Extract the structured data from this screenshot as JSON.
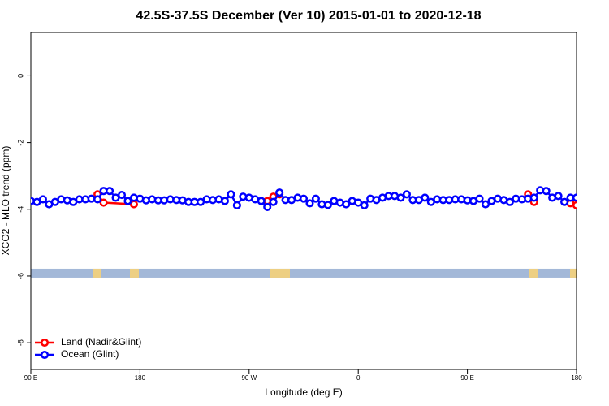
{
  "chart_data": {
    "type": "line",
    "title": "42.5S-37.5S December (Ver 10)   2015-01-01 to 2020-12-18",
    "xlabel": "Longitude (deg E)",
    "ylabel": "XCO2 - MLO trend (ppm)",
    "xlim": [
      90,
      540
    ],
    "ylim": [
      -8.8,
      1.3
    ],
    "xticks": [
      {
        "value": 90,
        "label": "90 E"
      },
      180,
      {
        "value": 270,
        "label": "90 W"
      },
      {
        "value": 360,
        "label": "0"
      },
      {
        "value": 450,
        "label": "90 E"
      },
      {
        "value": 540,
        "label": "180"
      }
    ],
    "yticks": [
      0,
      -2,
      -4,
      -6,
      -8
    ],
    "legend": "bottomleft",
    "series": [
      {
        "name": "Land (Nadir&Glint)",
        "color": "#ff0000",
        "x": [
          145,
          150,
          175,
          230,
          285,
          290,
          295,
          400,
          500,
          505,
          520,
          535,
          540
        ],
        "values": [
          -3.55,
          -3.8,
          -3.85,
          null,
          -3.75,
          -3.62,
          -3.55,
          null,
          -3.55,
          -3.78,
          null,
          -3.82,
          -3.88
        ]
      },
      {
        "name": "Ocean (Glint)",
        "color": "#0000ff",
        "x": [
          90,
          95,
          100,
          105,
          110,
          115,
          120,
          125,
          130,
          135,
          140,
          145,
          150,
          155,
          160,
          165,
          170,
          175,
          180,
          185,
          190,
          195,
          200,
          205,
          210,
          215,
          220,
          225,
          230,
          235,
          240,
          245,
          250,
          255,
          260,
          265,
          270,
          275,
          280,
          285,
          290,
          295,
          300,
          305,
          310,
          315,
          320,
          325,
          330,
          335,
          340,
          345,
          350,
          355,
          360,
          365,
          370,
          375,
          380,
          385,
          390,
          395,
          400,
          405,
          410,
          415,
          420,
          425,
          430,
          435,
          440,
          445,
          450,
          455,
          460,
          465,
          470,
          475,
          480,
          485,
          490,
          495,
          500,
          505,
          510,
          515,
          520,
          525,
          530,
          535,
          540
        ],
        "values": [
          -3.75,
          -3.78,
          -3.7,
          -3.85,
          -3.78,
          -3.7,
          -3.73,
          -3.78,
          -3.7,
          -3.7,
          -3.68,
          -3.7,
          -3.45,
          -3.45,
          -3.65,
          -3.57,
          -3.75,
          -3.65,
          -3.68,
          -3.73,
          -3.7,
          -3.73,
          -3.73,
          -3.7,
          -3.72,
          -3.73,
          -3.78,
          -3.78,
          -3.78,
          -3.7,
          -3.72,
          -3.7,
          -3.75,
          -3.55,
          -3.88,
          -3.62,
          -3.65,
          -3.7,
          -3.75,
          -3.93,
          -3.78,
          -3.5,
          -3.72,
          -3.72,
          -3.65,
          -3.68,
          -3.82,
          -3.68,
          -3.85,
          -3.87,
          -3.75,
          -3.8,
          -3.85,
          -3.75,
          -3.8,
          -3.88,
          -3.68,
          -3.72,
          -3.65,
          -3.6,
          -3.6,
          -3.65,
          -3.55,
          -3.72,
          -3.72,
          -3.65,
          -3.78,
          -3.7,
          -3.72,
          -3.72,
          -3.7,
          -3.7,
          -3.73,
          -3.75,
          -3.68,
          -3.85,
          -3.75,
          -3.68,
          -3.72,
          -3.78,
          -3.68,
          -3.7,
          -3.68,
          -3.65,
          -3.43,
          -3.45,
          -3.65,
          -3.6,
          -3.78,
          -3.65,
          -3.65
        ]
      }
    ]
  }
}
